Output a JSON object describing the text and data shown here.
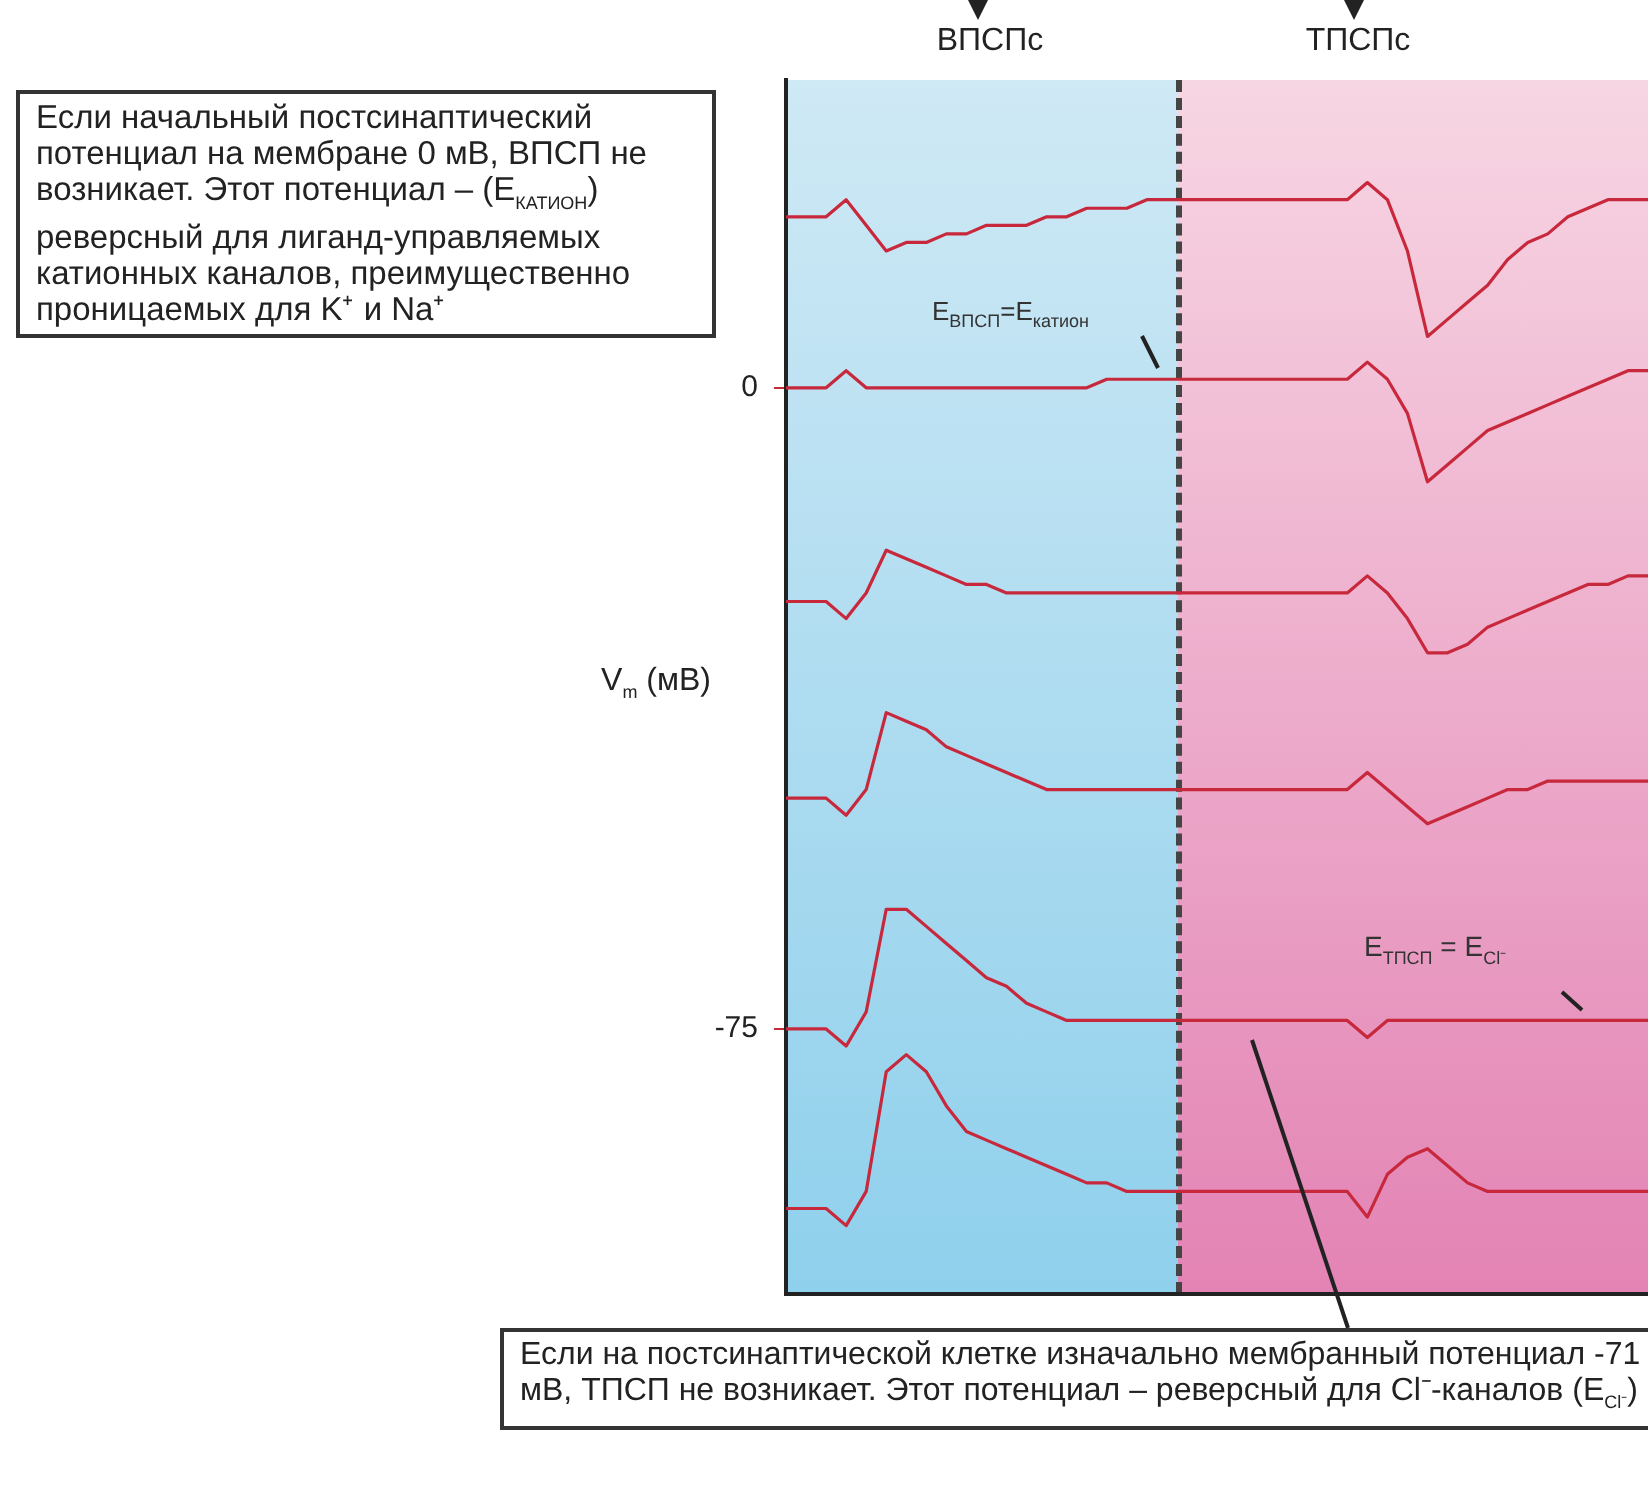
{
  "chart_data": {
    "type": "line",
    "ylabel": "V$_{m}$ (мВ)",
    "categories": [
      null,
      null,
      null,
      null,
      null,
      null,
      null,
      null,
      null,
      null,
      null,
      null,
      null,
      null,
      null,
      null,
      null,
      null,
      null,
      null,
      null,
      null,
      null,
      null,
      null,
      null,
      null,
      null,
      null,
      null,
      null,
      null,
      null,
      null,
      null,
      null,
      null,
      null,
      null,
      null,
      null,
      null,
      null,
      null
    ],
    "series": [
      {
        "color": "#c8283c",
        "values": [
          20,
          20,
          20,
          22,
          19,
          16,
          17,
          17,
          18,
          18,
          19,
          19,
          19,
          20,
          20,
          21,
          21,
          21,
          22,
          22,
          22,
          22,
          22,
          22,
          22,
          22,
          22,
          22,
          22,
          24,
          22,
          16,
          6,
          8,
          10,
          12,
          15,
          17,
          18,
          20,
          21,
          22,
          22,
          22
        ]
      },
      {
        "color": "#c8283c",
        "values": [
          0,
          0,
          0,
          2,
          0,
          0,
          0,
          0,
          0,
          0,
          0,
          0,
          0,
          0,
          0,
          0,
          1,
          1,
          1,
          1,
          1,
          1,
          1,
          1,
          1,
          1,
          1,
          1,
          1,
          3,
          1,
          -3,
          -11,
          -9,
          -7,
          -5,
          -4,
          -3,
          -2,
          -1,
          0,
          1,
          2,
          2
        ]
      },
      {
        "color": "#c8283c",
        "values": [
          -25,
          -25,
          -25,
          -27,
          -24,
          -19,
          -20,
          -21,
          -22,
          -23,
          -23,
          -24,
          -24,
          -24,
          -24,
          -24,
          -24,
          -24,
          -24,
          -24,
          -24,
          -24,
          -24,
          -24,
          -24,
          -24,
          -24,
          -24,
          -24,
          -22,
          -24,
          -27,
          -31,
          -31,
          -30,
          -28,
          -27,
          -26,
          -25,
          -24,
          -23,
          -23,
          -22,
          -22
        ]
      },
      {
        "color": "#c8283c",
        "values": [
          -48,
          -48,
          -48,
          -50,
          -47,
          -38,
          -39,
          -40,
          -42,
          -43,
          -44,
          -45,
          -46,
          -47,
          -47,
          -47,
          -47,
          -47,
          -47,
          -47,
          -47,
          -47,
          -47,
          -47,
          -47,
          -47,
          -47,
          -47,
          -47,
          -45,
          -47,
          -49,
          -51,
          -50,
          -49,
          -48,
          -47,
          -47,
          -46,
          -46,
          -46,
          -46,
          -46,
          -46
        ]
      },
      {
        "color": "#c8283c",
        "values": [
          -75,
          -75,
          -75,
          -77,
          -73,
          -61,
          -61,
          -63,
          -65,
          -67,
          -69,
          -70,
          -72,
          -73,
          -74,
          -74,
          -74,
          -74,
          -74,
          -74,
          -74,
          -74,
          -74,
          -74,
          -74,
          -74,
          -74,
          -74,
          -74,
          -76,
          -74,
          -74,
          -74,
          -74,
          -74,
          -74,
          -74,
          -74,
          -74,
          -74,
          -74,
          -74,
          -74,
          -74
        ]
      },
      {
        "color": "#c8283c",
        "values": [
          -96,
          -96,
          -96,
          -98,
          -94,
          -80,
          -78,
          -80,
          -84,
          -87,
          -88,
          -89,
          -90,
          -91,
          -92,
          -93,
          -93,
          -94,
          -94,
          -94,
          -94,
          -94,
          -94,
          -94,
          -94,
          -94,
          -94,
          -94,
          -94,
          -97,
          -92,
          -90,
          -89,
          -91,
          -93,
          -94,
          -94,
          -94,
          -94,
          -94,
          -94,
          -94,
          -94,
          -94
        ]
      }
    ],
    "ylim": [
      -106,
      36
    ],
    "yticks": [
      0,
      -75
    ],
    "tick_labels": "y",
    "line_style": "solid",
    "annotations": [
      "ВПСПс",
      "ТПСПс",
      "Если начальный постсинаптический потенциал на мембране 0 мВ, ВПСП не возникает. Этот потенциал – (E$_{КАТИОН}$) реверсный для лиганд-управляемых катионных каналов, преимущественно проницаемых для K⁺ и Na⁺",
      "E$_{ВПСП}$=E$_{катион}$",
      "E$_{ТПСП}$ = E$_{Cl⁻}$",
      "Если на постсинаптической клетке изначально мембранный потенциал -71 мВ, ТПСП не возникает. Этот потенциал – реверсный для Cl⁻-каналов (E$_{Cl⁻}$)"
    ]
  }
}
